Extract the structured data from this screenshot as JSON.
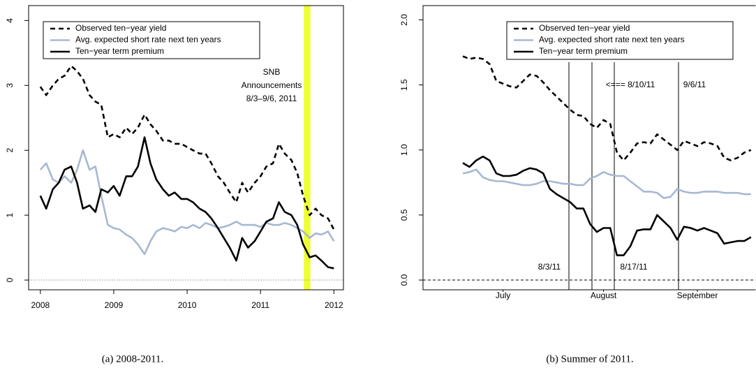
{
  "chart_data": [
    {
      "type": "line",
      "caption": "(a) 2008-2011.",
      "x": [
        2008,
        2008.08,
        2008.17,
        2008.25,
        2008.33,
        2008.42,
        2008.5,
        2008.58,
        2008.67,
        2008.75,
        2008.83,
        2008.92,
        2009,
        2009.08,
        2009.17,
        2009.25,
        2009.33,
        2009.42,
        2009.5,
        2009.58,
        2009.67,
        2009.75,
        2009.83,
        2009.92,
        2010,
        2010.08,
        2010.17,
        2010.25,
        2010.33,
        2010.42,
        2010.5,
        2010.58,
        2010.67,
        2010.75,
        2010.83,
        2010.92,
        2011,
        2011.08,
        2011.17,
        2011.25,
        2011.33,
        2011.42,
        2011.5,
        2011.58,
        2011.67,
        2011.75,
        2011.83,
        2011.92,
        2012
      ],
      "series": [
        {
          "name": "Observed ten−year yield",
          "color": "#000000",
          "style": "dashed",
          "values": [
            2.98,
            2.85,
            3.0,
            3.1,
            3.15,
            3.3,
            3.22,
            3.1,
            2.85,
            2.75,
            2.7,
            2.2,
            2.25,
            2.2,
            2.35,
            2.25,
            2.35,
            2.55,
            2.4,
            2.3,
            2.15,
            2.15,
            2.1,
            2.1,
            2.05,
            2.0,
            1.95,
            1.95,
            1.8,
            1.6,
            1.5,
            1.35,
            1.2,
            1.5,
            1.35,
            1.5,
            1.6,
            1.75,
            1.8,
            2.1,
            1.95,
            1.85,
            1.65,
            1.3,
            1.0,
            1.1,
            1.0,
            0.95,
            0.78
          ]
        },
        {
          "name": "Avg. expected short rate next ten years",
          "color": "#a7b8d2",
          "style": "solid",
          "values": [
            1.7,
            1.8,
            1.55,
            1.5,
            1.6,
            1.5,
            1.7,
            2.0,
            1.7,
            1.75,
            1.3,
            0.85,
            0.8,
            0.78,
            0.7,
            0.65,
            0.55,
            0.4,
            0.6,
            0.75,
            0.8,
            0.78,
            0.75,
            0.82,
            0.8,
            0.85,
            0.8,
            0.88,
            0.85,
            0.8,
            0.82,
            0.85,
            0.9,
            0.85,
            0.85,
            0.85,
            0.82,
            0.88,
            0.85,
            0.85,
            0.88,
            0.85,
            0.8,
            0.75,
            0.65,
            0.72,
            0.7,
            0.75,
            0.6
          ]
        },
        {
          "name": "Ten−year term premium",
          "color": "#000000",
          "style": "solid",
          "values": [
            1.3,
            1.1,
            1.4,
            1.5,
            1.7,
            1.75,
            1.5,
            1.1,
            1.15,
            1.05,
            1.4,
            1.35,
            1.45,
            1.3,
            1.6,
            1.6,
            1.75,
            2.2,
            1.8,
            1.55,
            1.4,
            1.3,
            1.35,
            1.25,
            1.25,
            1.2,
            1.1,
            1.05,
            0.95,
            0.8,
            0.65,
            0.5,
            0.3,
            0.65,
            0.5,
            0.6,
            0.75,
            0.9,
            0.95,
            1.2,
            1.05,
            1.0,
            0.85,
            0.55,
            0.35,
            0.38,
            0.3,
            0.2,
            0.18
          ]
        }
      ],
      "xlim": [
        2007.84,
        2012.13
      ],
      "xticks": [
        2008,
        2009,
        2010,
        2011,
        2012
      ],
      "ylim": [
        -0.15,
        4.23
      ],
      "yticks": [
        0,
        1,
        2,
        3,
        4
      ],
      "hline": 0,
      "hline_style": "dotted",
      "highlight": [
        2011.59,
        2011.68
      ],
      "highlight_color": "#eeff33",
      "annotation": [
        "SNB",
        "Announcements",
        "8/3–9/6, 2011"
      ],
      "legend": "top-left"
    },
    {
      "type": "line",
      "caption": "(b) Summer of 2011.",
      "categories": [
        null,
        null,
        null,
        null,
        null,
        null,
        "July",
        null,
        null,
        null,
        null,
        null,
        null,
        null,
        null,
        null,
        null,
        null,
        null,
        null,
        null,
        "August",
        null,
        null,
        null,
        null,
        null,
        null,
        null,
        null,
        null,
        null,
        null,
        null,
        null,
        "September",
        null,
        null,
        null,
        null,
        null,
        null,
        null,
        null
      ],
      "series": [
        {
          "name": "Observed ten−year yield",
          "color": "#000000",
          "style": "dashed",
          "values": [
            1.72,
            1.7,
            1.71,
            1.7,
            1.66,
            1.53,
            1.51,
            1.49,
            1.48,
            1.53,
            1.58,
            1.57,
            1.52,
            1.46,
            1.41,
            1.36,
            1.31,
            1.27,
            1.26,
            1.2,
            1.17,
            1.23,
            1.2,
            0.98,
            0.92,
            0.98,
            1.05,
            1.06,
            1.05,
            1.12,
            1.08,
            1.04,
            1.0,
            1.07,
            1.05,
            1.03,
            1.06,
            1.05,
            1.03,
            0.94,
            0.92,
            0.94,
            0.98,
            1.0
          ]
        },
        {
          "name": "Avg. expected short rate next ten years",
          "color": "#a7b8d2",
          "style": "solid",
          "values": [
            0.82,
            0.83,
            0.85,
            0.79,
            0.77,
            0.76,
            0.76,
            0.75,
            0.74,
            0.73,
            0.73,
            0.74,
            0.76,
            0.76,
            0.75,
            0.74,
            0.74,
            0.73,
            0.73,
            0.78,
            0.8,
            0.83,
            0.81,
            0.8,
            0.8,
            0.76,
            0.72,
            0.68,
            0.68,
            0.67,
            0.63,
            0.64,
            0.7,
            0.68,
            0.67,
            0.67,
            0.68,
            0.68,
            0.68,
            0.67,
            0.67,
            0.67,
            0.66,
            0.66
          ]
        },
        {
          "name": "Ten−year term premium",
          "color": "#000000",
          "style": "solid",
          "values": [
            0.9,
            0.87,
            0.92,
            0.95,
            0.92,
            0.82,
            0.8,
            0.8,
            0.81,
            0.84,
            0.86,
            0.85,
            0.82,
            0.7,
            0.66,
            0.63,
            0.6,
            0.55,
            0.55,
            0.43,
            0.37,
            0.4,
            0.4,
            0.19,
            0.19,
            0.26,
            0.38,
            0.39,
            0.39,
            0.5,
            0.45,
            0.4,
            0.31,
            0.41,
            0.4,
            0.38,
            0.4,
            0.38,
            0.36,
            0.28,
            0.29,
            0.3,
            0.3,
            0.33
          ]
        }
      ],
      "ylim": [
        -0.075,
        2.11
      ],
      "yticks": [
        {
          "value": 0,
          "label": "0.0"
        },
        0.5,
        {
          "value": 1,
          "label": "1.0"
        },
        1.5,
        {
          "value": 2,
          "label": "2.0"
        }
      ],
      "hline": 0,
      "hline_style": "dashed",
      "event_labels": [
        "8/3/11",
        "<=== 8/10/11",
        "8/17/11",
        "9/6/11"
      ],
      "legend": "top-center"
    }
  ]
}
